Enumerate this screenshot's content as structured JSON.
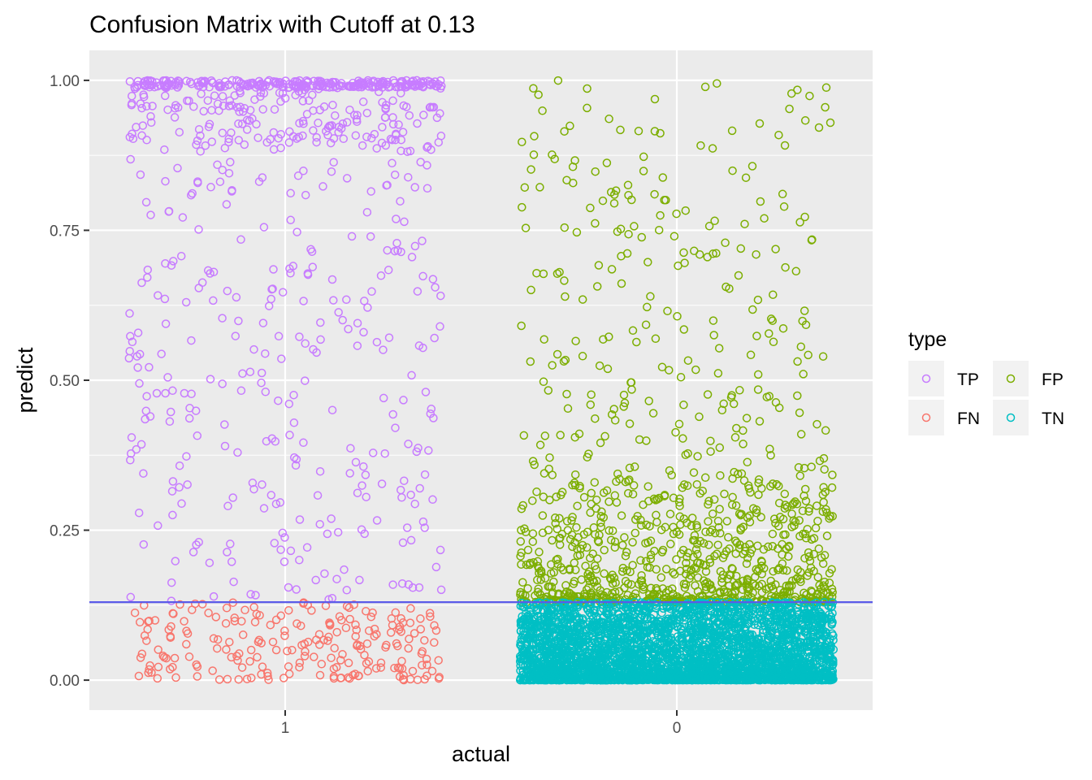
{
  "chart_data": {
    "type": "scatter",
    "title": "Confusion Matrix with Cutoff at 0.13",
    "xlabel": "actual",
    "ylabel": "predict",
    "x_categories": [
      "1",
      "0"
    ],
    "y_ticks": [
      "0.00",
      "0.25",
      "0.50",
      "0.75",
      "1.00"
    ],
    "ylim": [
      -0.05,
      1.05
    ],
    "cutoff": 0.13,
    "jitter_width": 0.4,
    "grid": true,
    "legend": {
      "title": "type",
      "position": "right",
      "layout": "2x2",
      "entries": [
        "TP",
        "FN",
        "FP",
        "TN"
      ]
    },
    "series": [
      {
        "name": "TP",
        "actual": "1",
        "y_min": 0.13,
        "y_max": 1.0,
        "count": 760,
        "color": "#C77CFF",
        "distribution": "concentrated near 1.00, sparser toward the cutoff"
      },
      {
        "name": "FN",
        "actual": "1",
        "y_min": 0.0,
        "y_max": 0.13,
        "count": 220,
        "color": "#F8766D",
        "distribution": "spread between 0.00 and the cutoff"
      },
      {
        "name": "FP",
        "actual": "0",
        "y_min": 0.13,
        "y_max": 1.0,
        "count": 1050,
        "color": "#7CAE00",
        "distribution": "dense just above the cutoff, sparse near 1.00"
      },
      {
        "name": "TN",
        "actual": "0",
        "y_min": 0.0,
        "y_max": 0.13,
        "count": 3400,
        "color": "#00BFC4",
        "distribution": "very dense near 0.00"
      }
    ],
    "colors": {
      "panel": "#EBEBEB",
      "grid": "#FFFFFF",
      "cutoff_line": "#5B5BE8",
      "legend_key": "#F2F2F2",
      "tick": "#333333",
      "tick_label": "#4D4D4D"
    }
  }
}
